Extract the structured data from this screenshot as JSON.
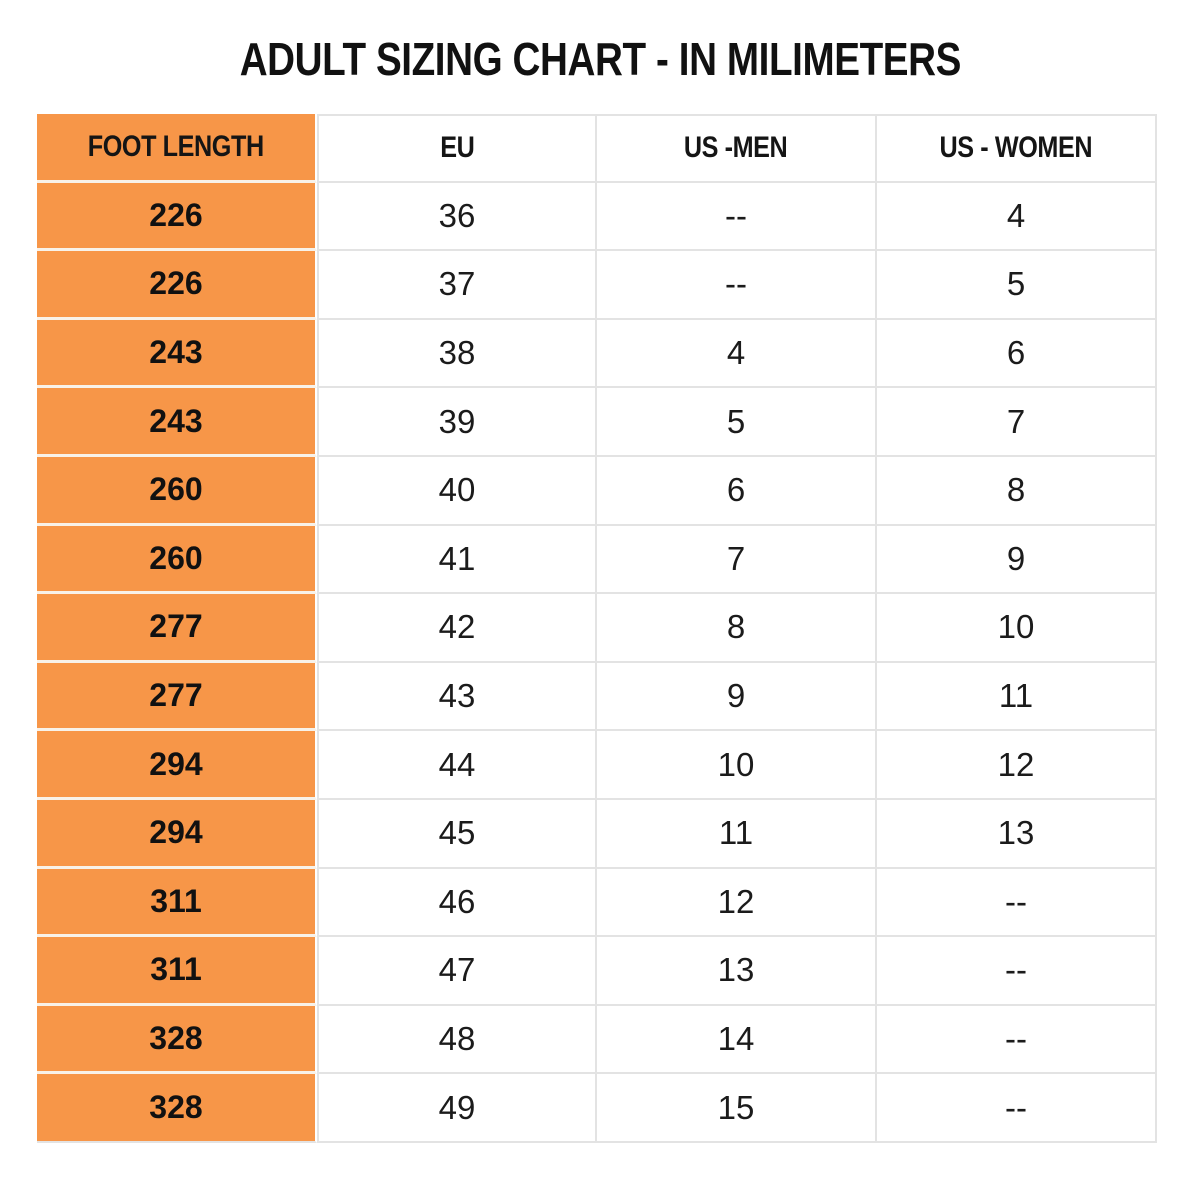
{
  "title": "ADULT SIZING CHART - IN MILIMETERS",
  "colors": {
    "accent_orange": "#f79648",
    "grid_line_gray": "#e3e3e3",
    "orange_row_divider": "#f8f2e9",
    "text_black": "#1b1b1b",
    "background": "#ffffff"
  },
  "chart_data": {
    "type": "table",
    "title": "ADULT SIZING CHART - IN MILIMETERS",
    "columns": [
      "FOOT LENGTH",
      "EU",
      "US -MEN",
      "US - WOMEN"
    ],
    "rows": [
      [
        "226",
        "36",
        "--",
        "4"
      ],
      [
        "226",
        "37",
        "--",
        "5"
      ],
      [
        "243",
        "38",
        "4",
        "6"
      ],
      [
        "243",
        "39",
        "5",
        "7"
      ],
      [
        "260",
        "40",
        "6",
        "8"
      ],
      [
        "260",
        "41",
        "7",
        "9"
      ],
      [
        "277",
        "42",
        "8",
        "10"
      ],
      [
        "277",
        "43",
        "9",
        "11"
      ],
      [
        "294",
        "44",
        "10",
        "12"
      ],
      [
        "294",
        "45",
        "11",
        "13"
      ],
      [
        "311",
        "46",
        "12",
        "--"
      ],
      [
        "311",
        "47",
        "13",
        "--"
      ],
      [
        "328",
        "48",
        "14",
        "--"
      ],
      [
        "328",
        "49",
        "15",
        "--"
      ]
    ],
    "layout": {
      "header_column_highlighted": "FOOT LENGTH",
      "grid": true,
      "units": "millimeters"
    }
  }
}
